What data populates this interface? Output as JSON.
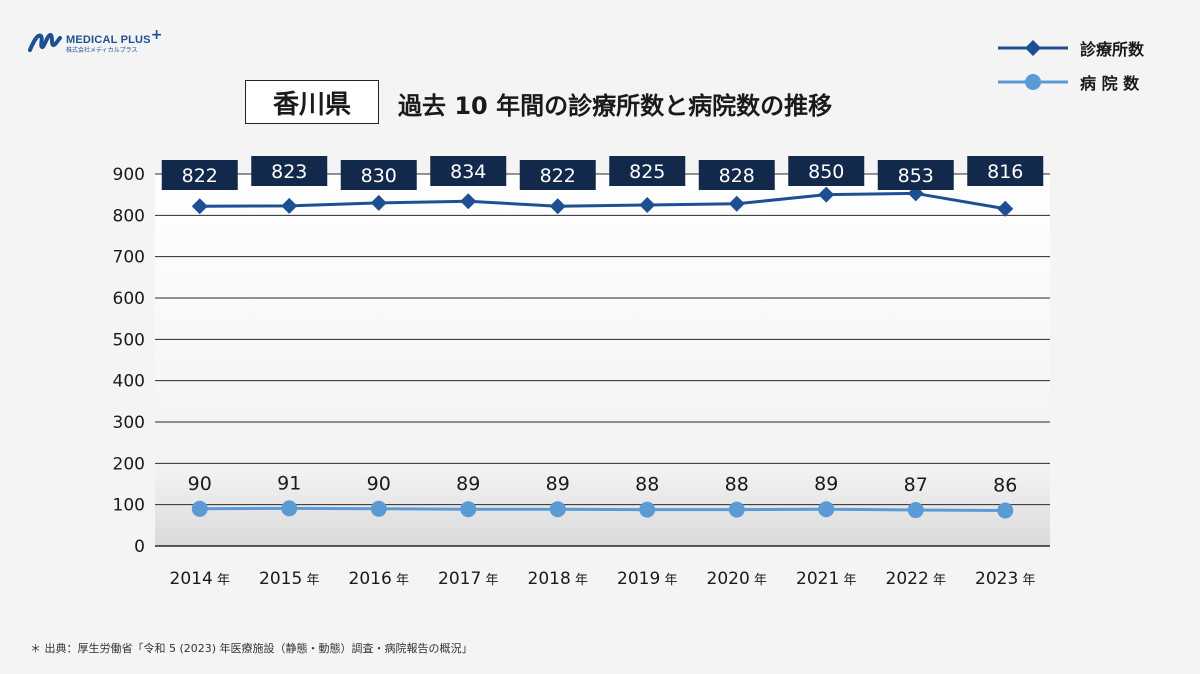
{
  "logo": {
    "name": "MEDICAL PLUS",
    "plus": "+",
    "subtitle": "株式会社メディカルプラス"
  },
  "header": {
    "prefecture": "香川県",
    "title": "過去 10 年間の診療所数と病院数の推移"
  },
  "legend": {
    "clinics": "診療所数",
    "hospitals": "病 院 数"
  },
  "source": "＊ 出典：厚生労働省「令和 5 (2023) 年医療施設（静態・動態）調査・病院報告の概況」",
  "colors": {
    "clinics_line": "#1f4f93",
    "hospitals_line": "#5b9bd5",
    "label_box": "#13294b"
  },
  "chart_data": {
    "type": "line",
    "categories": [
      "2014 年",
      "2015 年",
      "2016 年",
      "2017 年",
      "2018 年",
      "2019 年",
      "2020 年",
      "2021 年",
      "2022 年",
      "2023 年"
    ],
    "series": [
      {
        "name": "診療所数",
        "values": [
          822,
          823,
          830,
          834,
          822,
          825,
          828,
          850,
          853,
          816
        ]
      },
      {
        "name": "病 院 数",
        "values": [
          90,
          91,
          90,
          89,
          89,
          88,
          88,
          89,
          87,
          86
        ]
      }
    ],
    "yticks": [
      "0",
      "100",
      "200",
      "300",
      "400",
      "500",
      "600",
      "700",
      "800",
      "900"
    ],
    "ylim": [
      0,
      900
    ],
    "grid": true
  }
}
